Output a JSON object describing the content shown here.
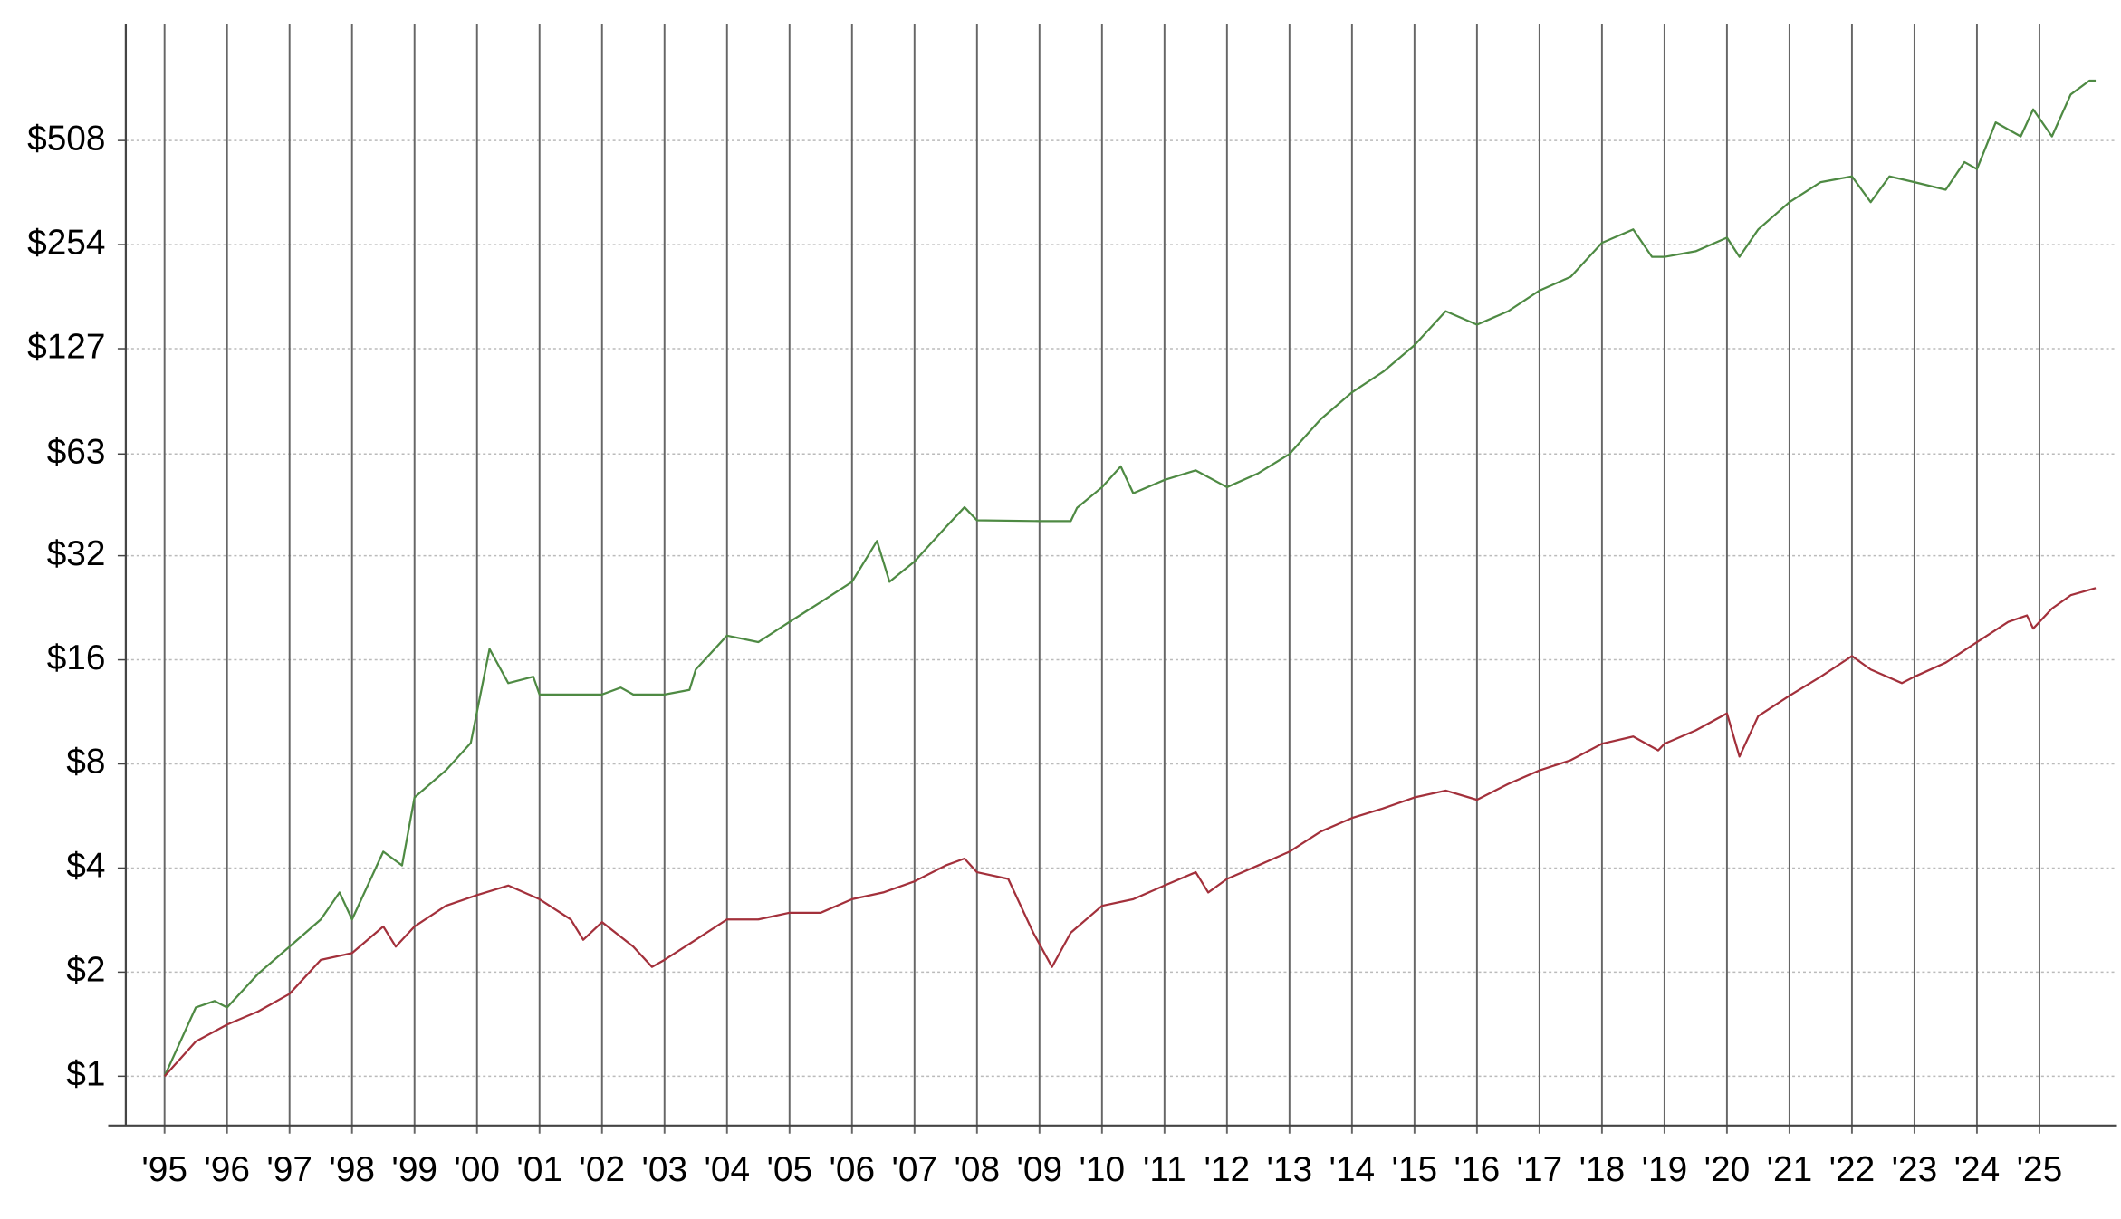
{
  "chart_data": {
    "type": "line",
    "log_y": true,
    "grid": true,
    "xlim": [
      1994.38,
      2026.24
    ],
    "ylim": [
      0.72,
      1100
    ],
    "yticks": [
      {
        "value": 1,
        "label": "$1"
      },
      {
        "value": 2,
        "label": "$2"
      },
      {
        "value": 4,
        "label": "$4"
      },
      {
        "value": 8,
        "label": "$8"
      },
      {
        "value": 16,
        "label": "$16"
      },
      {
        "value": 32,
        "label": "$32"
      },
      {
        "value": 63,
        "label": "$63"
      },
      {
        "value": 127,
        "label": "$127"
      },
      {
        "value": 254,
        "label": "$254"
      },
      {
        "value": 508,
        "label": "$508"
      }
    ],
    "xticks": [
      {
        "value": 1995,
        "label": "'95"
      },
      {
        "value": 1996,
        "label": "'96"
      },
      {
        "value": 1997,
        "label": "'97"
      },
      {
        "value": 1998,
        "label": "'98"
      },
      {
        "value": 1999,
        "label": "'99"
      },
      {
        "value": 2000,
        "label": "'00"
      },
      {
        "value": 2001,
        "label": "'01"
      },
      {
        "value": 2002,
        "label": "'02"
      },
      {
        "value": 2003,
        "label": "'03"
      },
      {
        "value": 2004,
        "label": "'04"
      },
      {
        "value": 2005,
        "label": "'05"
      },
      {
        "value": 2006,
        "label": "'06"
      },
      {
        "value": 2007,
        "label": "'07"
      },
      {
        "value": 2008,
        "label": "'08"
      },
      {
        "value": 2009,
        "label": "'09"
      },
      {
        "value": 2010,
        "label": "'10"
      },
      {
        "value": 2011,
        "label": "'11"
      },
      {
        "value": 2012,
        "label": "'12"
      },
      {
        "value": 2013,
        "label": "'13"
      },
      {
        "value": 2014,
        "label": "'14"
      },
      {
        "value": 2015,
        "label": "'15"
      },
      {
        "value": 2016,
        "label": "'16"
      },
      {
        "value": 2017,
        "label": "'17"
      },
      {
        "value": 2018,
        "label": "'18"
      },
      {
        "value": 2019,
        "label": "'19"
      },
      {
        "value": 2020,
        "label": "'20"
      },
      {
        "value": 2021,
        "label": "'21"
      },
      {
        "value": 2022,
        "label": "'22"
      },
      {
        "value": 2023,
        "label": "'23"
      },
      {
        "value": 2024,
        "label": "'24"
      },
      {
        "value": 2025,
        "label": "'25"
      }
    ],
    "series": [
      {
        "color": "#4e8a43",
        "x": [
          1995.0,
          1995.5,
          1995.8,
          1996.0,
          1996.5,
          1997.0,
          1997.5,
          1997.8,
          1998.0,
          1998.5,
          1998.8,
          1999.0,
          1999.5,
          1999.9,
          2000.2,
          2000.5,
          2000.9,
          2001.0,
          2002.0,
          2002.3,
          2002.5,
          2003.0,
          2003.4,
          2003.5,
          2004.0,
          2004.5,
          2005.0,
          2005.5,
          2006.0,
          2006.4,
          2006.6,
          2007.0,
          2007.5,
          2007.8,
          2008.0,
          2009.0,
          2009.5,
          2009.6,
          2010.0,
          2010.3,
          2010.5,
          2011.0,
          2011.5,
          2012.0,
          2012.5,
          2013.0,
          2013.5,
          2014.0,
          2014.5,
          2015.0,
          2015.5,
          2016.0,
          2016.5,
          2017.0,
          2017.5,
          2018.0,
          2018.5,
          2018.8,
          2019.0,
          2019.5,
          2020.0,
          2020.2,
          2020.5,
          2021.0,
          2021.5,
          2022.0,
          2022.3,
          2022.6,
          2023.0,
          2023.5,
          2023.8,
          2024.0,
          2024.3,
          2024.7,
          2024.9,
          2025.2,
          2025.5,
          2025.8,
          2025.9
        ],
        "values": [
          1,
          1.58,
          1.65,
          1.58,
          1.98,
          2.37,
          2.84,
          3.4,
          2.84,
          4.46,
          4.07,
          6.4,
          7.66,
          9.2,
          17.2,
          13.7,
          14.3,
          12.7,
          12.7,
          13.3,
          12.7,
          12.7,
          13.1,
          15.0,
          18.8,
          18.0,
          20.6,
          23.5,
          26.9,
          35.3,
          26.9,
          30.8,
          38.7,
          44.2,
          40.5,
          40.3,
          40.3,
          44,
          50.5,
          58,
          48.5,
          53,
          56.5,
          50.5,
          55.4,
          63,
          79.4,
          95,
          109,
          130,
          163,
          149,
          163,
          187,
          205,
          257,
          281,
          234,
          234,
          243,
          266,
          234,
          281,
          337,
          385,
          400,
          337,
          400,
          385,
          366,
          440,
          420,
          573,
          522,
          625,
          522,
          690,
          757,
          757
        ]
      },
      {
        "color": "#a3303b",
        "x": [
          1995.0,
          1995.5,
          1996.0,
          1996.5,
          1997.0,
          1997.5,
          1998.0,
          1998.5,
          1998.7,
          1999.0,
          1999.5,
          2000.0,
          2000.5,
          2001.0,
          2001.5,
          2001.7,
          2002.0,
          2002.5,
          2002.8,
          2003.0,
          2003.5,
          2004.0,
          2004.5,
          2005.0,
          2005.5,
          2006.0,
          2006.5,
          2007.0,
          2007.5,
          2007.8,
          2008.0,
          2008.5,
          2008.9,
          2009.2,
          2009.5,
          2010.0,
          2010.5,
          2011.0,
          2011.5,
          2011.7,
          2012.0,
          2012.5,
          2013.0,
          2013.5,
          2014.0,
          2014.5,
          2015.0,
          2015.5,
          2016.0,
          2016.5,
          2017.0,
          2017.5,
          2018.0,
          2018.5,
          2018.9,
          2019.0,
          2019.5,
          2020.0,
          2020.2,
          2020.5,
          2021.0,
          2021.5,
          2022.0,
          2022.3,
          2022.8,
          2023.0,
          2023.5,
          2024.0,
          2024.5,
          2024.8,
          2024.9,
          2025.2,
          2025.5,
          2025.9
        ],
        "values": [
          1,
          1.26,
          1.41,
          1.54,
          1.73,
          2.17,
          2.27,
          2.71,
          2.37,
          2.71,
          3.11,
          3.34,
          3.56,
          3.25,
          2.84,
          2.48,
          2.79,
          2.37,
          2.07,
          2.17,
          2.48,
          2.84,
          2.84,
          2.97,
          2.97,
          3.25,
          3.4,
          3.66,
          4.07,
          4.26,
          3.89,
          3.72,
          2.6,
          2.07,
          2.6,
          3.11,
          3.25,
          3.56,
          3.89,
          3.4,
          3.72,
          4.07,
          4.46,
          5.1,
          5.58,
          5.95,
          6.4,
          6.7,
          6.3,
          7.0,
          7.66,
          8.2,
          9.15,
          9.6,
          8.75,
          9.15,
          10,
          11.2,
          8.4,
          11,
          12.6,
          14.3,
          16.4,
          15.0,
          13.7,
          14.3,
          15.7,
          18,
          20.6,
          21.5,
          19.7,
          22.5,
          24.6,
          25.8
        ]
      }
    ]
  }
}
